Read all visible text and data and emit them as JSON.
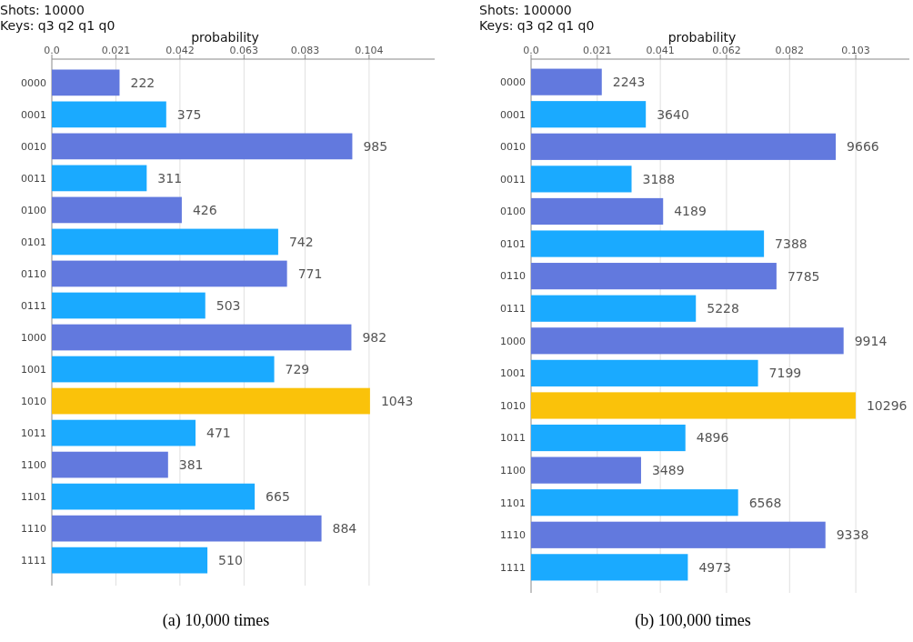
{
  "chart_data": [
    {
      "type": "bar",
      "orientation": "horizontal",
      "title": "(a) 10,000 times",
      "x2label": "probability",
      "annotations": [
        "Shots: 10000",
        "Keys: q3 q2 q1 q0"
      ],
      "categories": [
        "0000",
        "0001",
        "0010",
        "0011",
        "0100",
        "0101",
        "0110",
        "0111",
        "1000",
        "1001",
        "1010",
        "1011",
        "1100",
        "1101",
        "1110",
        "1111"
      ],
      "values": [
        222,
        375,
        985,
        311,
        426,
        742,
        771,
        503,
        982,
        729,
        1043,
        471,
        381,
        665,
        884,
        510
      ],
      "colors": [
        "#6279de",
        "#1aaaff",
        "#6279de",
        "#1aaaff",
        "#6279de",
        "#1aaaff",
        "#6279de",
        "#1aaaff",
        "#6279de",
        "#1aaaff",
        "#fac20a",
        "#1aaaff",
        "#6279de",
        "#1aaaff",
        "#6279de",
        "#1aaaff"
      ],
      "xlim": [
        0,
        1255
      ],
      "x2lim": [
        0,
        0.1255
      ],
      "x2ticks": [
        {
          "value": 0,
          "label": "0.0"
        },
        0.021,
        0.042,
        0.063,
        0.083,
        0.104
      ],
      "grid": "x",
      "data_labels": true
    },
    {
      "type": "bar",
      "orientation": "horizontal",
      "title": "(b) 100,000 times",
      "x2label": "probability",
      "annotations": [
        "Shots: 100000",
        "Keys: q3 q2 q1 q0"
      ],
      "categories": [
        "0000",
        "0001",
        "0010",
        "0011",
        "0100",
        "0101",
        "0110",
        "0111",
        "1000",
        "1001",
        "1010",
        "1011",
        "1100",
        "1101",
        "1110",
        "1111"
      ],
      "values": [
        2243,
        3640,
        9666,
        3188,
        4189,
        7388,
        7785,
        5228,
        9914,
        7199,
        10296,
        4896,
        3489,
        6568,
        9338,
        4973
      ],
      "colors": [
        "#6279de",
        "#1aaaff",
        "#6279de",
        "#1aaaff",
        "#6279de",
        "#1aaaff",
        "#6279de",
        "#1aaaff",
        "#6279de",
        "#1aaaff",
        "#fac20a",
        "#1aaaff",
        "#6279de",
        "#1aaaff",
        "#6279de",
        "#1aaaff"
      ],
      "xlim": [
        0,
        12000
      ],
      "x2lim": [
        0,
        0.12
      ],
      "x2ticks": [
        {
          "value": 0,
          "label": "0.0"
        },
        0.021,
        0.041,
        0.062,
        0.082,
        0.103
      ],
      "grid": "x",
      "data_labels": true
    }
  ]
}
